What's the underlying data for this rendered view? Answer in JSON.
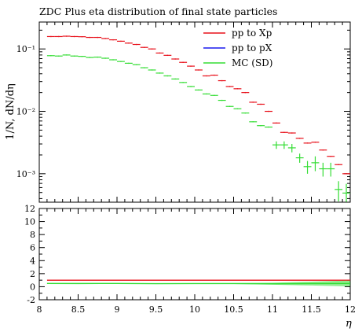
{
  "chart_data": [
    {
      "type": "scatter",
      "panel": "main",
      "title": "ZDC Plus eta distribution of final state particles",
      "ylabel": "1/N, dN/dη",
      "yscale": "log",
      "ylim": [
        0.00035,
        0.27
      ],
      "xlim": [
        8,
        12
      ],
      "y_ticks": [
        {
          "value": 0.1,
          "label": "10⁻¹"
        },
        {
          "value": 0.01,
          "label": "10⁻²"
        },
        {
          "value": 0.001,
          "label": "10⁻³"
        }
      ],
      "legend_position": "top-right",
      "series": [
        {
          "name": "pp to Xp",
          "color": "#e8101a",
          "points": [
            {
              "x": 8.15,
              "y": 0.158,
              "yerr": 0.0
            },
            {
              "x": 8.25,
              "y": 0.158,
              "yerr": 0.0
            },
            {
              "x": 8.35,
              "y": 0.16,
              "yerr": 0.0
            },
            {
              "x": 8.45,
              "y": 0.158,
              "yerr": 0.0
            },
            {
              "x": 8.55,
              "y": 0.157,
              "yerr": 0.0
            },
            {
              "x": 8.65,
              "y": 0.153,
              "yerr": 0.0
            },
            {
              "x": 8.75,
              "y": 0.153,
              "yerr": 0.0
            },
            {
              "x": 8.85,
              "y": 0.147,
              "yerr": 0.0
            },
            {
              "x": 8.95,
              "y": 0.14,
              "yerr": 0.0
            },
            {
              "x": 9.05,
              "y": 0.133,
              "yerr": 0.0
            },
            {
              "x": 9.15,
              "y": 0.124,
              "yerr": 0.0
            },
            {
              "x": 9.25,
              "y": 0.118,
              "yerr": 0.0
            },
            {
              "x": 9.35,
              "y": 0.106,
              "yerr": 0.0
            },
            {
              "x": 9.45,
              "y": 0.1,
              "yerr": 0.0
            },
            {
              "x": 9.55,
              "y": 0.086,
              "yerr": 0.0
            },
            {
              "x": 9.65,
              "y": 0.079,
              "yerr": 0.0
            },
            {
              "x": 9.75,
              "y": 0.069,
              "yerr": 0.0
            },
            {
              "x": 9.85,
              "y": 0.061,
              "yerr": 0.0
            },
            {
              "x": 9.95,
              "y": 0.053,
              "yerr": 0.0
            },
            {
              "x": 10.05,
              "y": 0.046,
              "yerr": 0.0
            },
            {
              "x": 10.15,
              "y": 0.037,
              "yerr": 0.0
            },
            {
              "x": 10.25,
              "y": 0.038,
              "yerr": 0.0
            },
            {
              "x": 10.35,
              "y": 0.031,
              "yerr": 0.0
            },
            {
              "x": 10.45,
              "y": 0.025,
              "yerr": 0.0
            },
            {
              "x": 10.55,
              "y": 0.023,
              "yerr": 0.0
            },
            {
              "x": 10.65,
              "y": 0.02,
              "yerr": 0.0
            },
            {
              "x": 10.75,
              "y": 0.014,
              "yerr": 0.0
            },
            {
              "x": 10.85,
              "y": 0.013,
              "yerr": 0.0
            },
            {
              "x": 10.95,
              "y": 0.01,
              "yerr": 0.0
            },
            {
              "x": 11.05,
              "y": 0.0065,
              "yerr": 0.0
            },
            {
              "x": 11.15,
              "y": 0.0046,
              "yerr": 0.0
            },
            {
              "x": 11.25,
              "y": 0.0045,
              "yerr": 0.0
            },
            {
              "x": 11.35,
              "y": 0.0037,
              "yerr": 0.0
            },
            {
              "x": 11.45,
              "y": 0.0031,
              "yerr": 0.0
            },
            {
              "x": 11.55,
              "y": 0.0032,
              "yerr": 0.0
            },
            {
              "x": 11.65,
              "y": 0.0024,
              "yerr": 0.0
            },
            {
              "x": 11.75,
              "y": 0.0019,
              "yerr": 0.0
            },
            {
              "x": 11.85,
              "y": 0.0014,
              "yerr": 0.0
            },
            {
              "x": 11.95,
              "y": 0.001,
              "yerr": 0.0
            }
          ]
        },
        {
          "name": "pp to pX",
          "color": "#1a1aee",
          "points": []
        },
        {
          "name": "MC (SD)",
          "color": "#33dd33",
          "points": [
            {
              "x": 8.15,
              "y": 0.078,
              "yerr": 0.0
            },
            {
              "x": 8.25,
              "y": 0.077,
              "yerr": 0.0
            },
            {
              "x": 8.35,
              "y": 0.08,
              "yerr": 0.0
            },
            {
              "x": 8.45,
              "y": 0.077,
              "yerr": 0.0
            },
            {
              "x": 8.55,
              "y": 0.076,
              "yerr": 0.0
            },
            {
              "x": 8.65,
              "y": 0.073,
              "yerr": 0.0
            },
            {
              "x": 8.75,
              "y": 0.074,
              "yerr": 0.0
            },
            {
              "x": 8.85,
              "y": 0.071,
              "yerr": 0.0
            },
            {
              "x": 8.95,
              "y": 0.067,
              "yerr": 0.0
            },
            {
              "x": 9.05,
              "y": 0.063,
              "yerr": 0.0
            },
            {
              "x": 9.15,
              "y": 0.059,
              "yerr": 0.0
            },
            {
              "x": 9.25,
              "y": 0.056,
              "yerr": 0.0
            },
            {
              "x": 9.35,
              "y": 0.05,
              "yerr": 0.0
            },
            {
              "x": 9.45,
              "y": 0.046,
              "yerr": 0.0
            },
            {
              "x": 9.55,
              "y": 0.041,
              "yerr": 0.0
            },
            {
              "x": 9.65,
              "y": 0.037,
              "yerr": 0.0
            },
            {
              "x": 9.75,
              "y": 0.033,
              "yerr": 0.0
            },
            {
              "x": 9.85,
              "y": 0.029,
              "yerr": 0.0
            },
            {
              "x": 9.95,
              "y": 0.025,
              "yerr": 0.0
            },
            {
              "x": 10.05,
              "y": 0.022,
              "yerr": 0.0
            },
            {
              "x": 10.15,
              "y": 0.019,
              "yerr": 0.0
            },
            {
              "x": 10.25,
              "y": 0.018,
              "yerr": 0.0
            },
            {
              "x": 10.35,
              "y": 0.015,
              "yerr": 0.0
            },
            {
              "x": 10.45,
              "y": 0.012,
              "yerr": 0.0
            },
            {
              "x": 10.55,
              "y": 0.011,
              "yerr": 0.0
            },
            {
              "x": 10.65,
              "y": 0.0094,
              "yerr": 0.0
            },
            {
              "x": 10.75,
              "y": 0.0068,
              "yerr": 0.0
            },
            {
              "x": 10.85,
              "y": 0.0059,
              "yerr": 0.0
            },
            {
              "x": 10.95,
              "y": 0.0056,
              "yerr": 0.0
            },
            {
              "x": 11.05,
              "y": 0.0029,
              "yerr": 0.0004
            },
            {
              "x": 11.15,
              "y": 0.0029,
              "yerr": 0.0004
            },
            {
              "x": 11.25,
              "y": 0.0026,
              "yerr": 0.0004
            },
            {
              "x": 11.35,
              "y": 0.0018,
              "yerr": 0.0003
            },
            {
              "x": 11.45,
              "y": 0.0013,
              "yerr": 0.0003
            },
            {
              "x": 11.55,
              "y": 0.0015,
              "yerr": 0.0004
            },
            {
              "x": 11.65,
              "y": 0.0012,
              "yerr": 0.0003
            },
            {
              "x": 11.75,
              "y": 0.0012,
              "yerr": 0.0003
            },
            {
              "x": 11.85,
              "y": 0.00056,
              "yerr": 0.0002
            },
            {
              "x": 11.95,
              "y": 0.00049,
              "yerr": 0.0002
            }
          ]
        }
      ]
    },
    {
      "type": "line",
      "panel": "ratio",
      "xlabel": "η",
      "xlim": [
        8,
        12
      ],
      "ylim": [
        -2,
        12
      ],
      "x_ticks": [
        {
          "value": 8,
          "label": "8"
        },
        {
          "value": 8.5,
          "label": "8.5"
        },
        {
          "value": 9,
          "label": "9"
        },
        {
          "value": 9.5,
          "label": "9.5"
        },
        {
          "value": 10,
          "label": "10"
        },
        {
          "value": 10.5,
          "label": "10.5"
        },
        {
          "value": 11,
          "label": "11"
        },
        {
          "value": 11.5,
          "label": "11.5"
        },
        {
          "value": 12,
          "label": "12"
        }
      ],
      "y_ticks": [
        {
          "value": 12,
          "label": "12"
        },
        {
          "value": 10,
          "label": "10"
        },
        {
          "value": 8,
          "label": "8"
        },
        {
          "value": 6,
          "label": "6"
        },
        {
          "value": 4,
          "label": "4"
        },
        {
          "value": 2,
          "label": "2"
        },
        {
          "value": 0,
          "label": "0"
        },
        {
          "value": -2,
          "label": "-2"
        }
      ],
      "series": [
        {
          "name": "pp to Xp",
          "color": "#e8101a",
          "x": [
            8.1,
            12
          ],
          "y": [
            1,
            1
          ]
        },
        {
          "name": "MC (SD)",
          "color": "#33dd33",
          "x": [
            8.1,
            8.5,
            9.0,
            9.5,
            10.0,
            10.5,
            11.0,
            11.5,
            12.0
          ],
          "y": [
            0.5,
            0.49,
            0.5,
            0.47,
            0.48,
            0.48,
            0.46,
            0.48,
            0.5
          ],
          "band_half_width": [
            0.05,
            0.05,
            0.05,
            0.05,
            0.06,
            0.07,
            0.15,
            0.3,
            0.45
          ]
        }
      ]
    }
  ]
}
